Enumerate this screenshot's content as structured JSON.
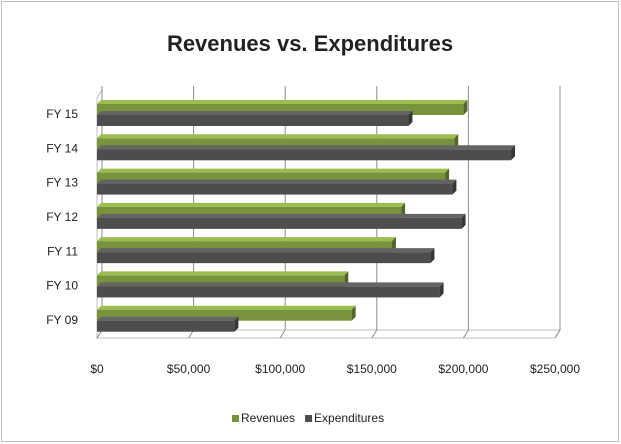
{
  "chart_data": {
    "type": "bar3d_horizontal",
    "title": "Revenues vs. Expenditures",
    "categories": [
      "FY 09",
      "FY 10",
      "FY 11",
      "FY 12",
      "FY 13",
      "FY 14",
      "FY 15"
    ],
    "series": [
      {
        "name": "Revenues",
        "color": "#77933c",
        "values": [
          139000,
          135000,
          161000,
          166000,
          190000,
          195000,
          200000
        ]
      },
      {
        "name": "Expenditures",
        "color": "#4d4d4d",
        "values": [
          75000,
          187000,
          182000,
          199000,
          194000,
          226000,
          170000
        ]
      }
    ],
    "xlim": [
      0,
      250000
    ],
    "xticks": [
      {
        "value": 0,
        "label": "$0"
      },
      {
        "value": 50000,
        "label": "$50,000"
      },
      {
        "value": 100000,
        "label": "$100,000"
      },
      {
        "value": 150000,
        "label": "$150,000"
      },
      {
        "value": 200000,
        "label": "$200,000"
      },
      {
        "value": 250000,
        "label": "$250,000"
      }
    ],
    "grid": true,
    "legend": "bottom"
  }
}
